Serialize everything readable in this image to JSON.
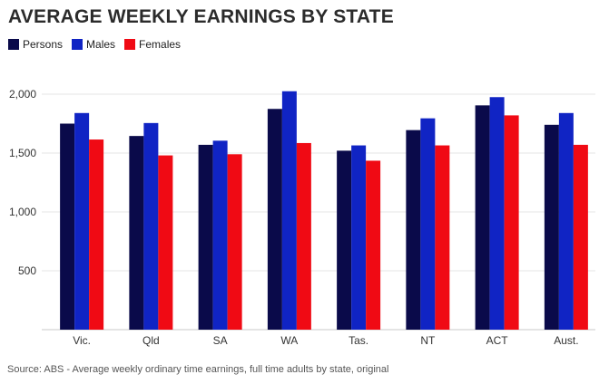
{
  "title": "AVERAGE WEEKLY EARNINGS BY STATE",
  "source_note": "Source: ABS - Average weekly ordinary time earnings, full time adults by state, original",
  "colors": {
    "persons": "#0a0a4a",
    "males": "#1024c4",
    "females": "#f00a14",
    "grid": "#e6e6e6",
    "axis": "#c8c8c8"
  },
  "chart_data": {
    "type": "bar",
    "title": "AVERAGE WEEKLY EARNINGS BY STATE",
    "xlabel": "",
    "ylabel": "",
    "ylim": [
      0,
      2000
    ],
    "yticks": [
      500,
      1000,
      1500,
      2000
    ],
    "ytick_labels": [
      "500",
      "1,000",
      "1,500",
      "2,000"
    ],
    "grid": true,
    "legend_position": "top-left",
    "categories": [
      "Vic.",
      "Qld",
      "SA",
      "WA",
      "Tas.",
      "NT",
      "ACT",
      "Aust."
    ],
    "series": [
      {
        "name": "Persons",
        "color": "#0a0a4a",
        "values": [
          1750,
          1645,
          1570,
          1875,
          1520,
          1695,
          1905,
          1740
        ]
      },
      {
        "name": "Males",
        "color": "#1024c4",
        "values": [
          1840,
          1755,
          1605,
          2025,
          1565,
          1795,
          1975,
          1840
        ]
      },
      {
        "name": "Females",
        "color": "#f00a14",
        "values": [
          1615,
          1480,
          1490,
          1585,
          1435,
          1565,
          1820,
          1570
        ]
      }
    ]
  }
}
